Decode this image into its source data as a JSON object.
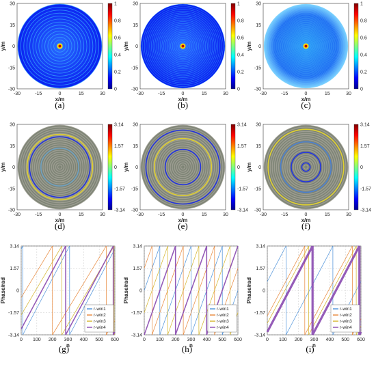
{
  "panels": [
    {
      "id": "a",
      "caption": "(a)",
      "kind": "amp",
      "density": 14,
      "cb": [
        "1",
        "0.8",
        "0.6",
        "0.4",
        "0.2",
        "0"
      ]
    },
    {
      "id": "b",
      "caption": "(b)",
      "kind": "amp",
      "density": 24,
      "cb": [
        "1",
        "0.8",
        "0.6",
        "0.4",
        "0.2",
        "0"
      ]
    },
    {
      "id": "c",
      "caption": "(c)",
      "kind": "amp",
      "density": 40,
      "cb": [
        "1",
        "0.8",
        "0.6",
        "0.4",
        "0.2",
        "0"
      ]
    },
    {
      "id": "d",
      "caption": "(d)",
      "kind": "phase",
      "cb": [
        "3.14",
        "1.57",
        "0",
        "-1.57",
        "-3.14"
      ]
    },
    {
      "id": "e",
      "caption": "(e)",
      "kind": "phase",
      "cb": [
        "3.14",
        "1.57",
        "0",
        "-1.57",
        "-3.14"
      ]
    },
    {
      "id": "f",
      "caption": "(f)",
      "kind": "phase",
      "cb": [
        "3.14",
        "1.57",
        "0",
        "-1.57",
        "-3.14"
      ]
    },
    {
      "id": "g",
      "caption": "(g)",
      "kind": "line"
    },
    {
      "id": "h",
      "caption": "(h)",
      "kind": "line"
    },
    {
      "id": "i",
      "caption": "(i)",
      "kind": "line"
    }
  ],
  "map_axes": {
    "xlabel": "x/m",
    "ylabel": "y/m",
    "xticks": [
      "-30",
      "-15",
      "0",
      "15",
      "30"
    ],
    "yticks": [
      "30",
      "15",
      "0",
      "-15",
      "-30"
    ]
  },
  "line_axes": {
    "xlabel": "n",
    "ylabel": "Phase/rad",
    "xticks": [
      "0",
      "100",
      "200",
      "300",
      "400",
      "500",
      "600"
    ],
    "yticks": [
      "3.14",
      "1.57",
      "0",
      "-1.57",
      "-3.14"
    ],
    "legend": [
      "r-win1",
      "r-win2",
      "r-win3",
      "r-win4"
    ],
    "colors": [
      "#4a90d9",
      "#e8873a",
      "#d4b42a",
      "#8a4ab0"
    ]
  },
  "chart_data": [
    {
      "type": "line",
      "panel": "g",
      "xlabel": "n",
      "ylabel": "Phase/rad",
      "xlim": [
        0,
        600
      ],
      "ylim": [
        -3.14,
        3.14
      ],
      "series": [
        {
          "name": "r-win1",
          "wraps": [
            10,
            310
          ]
        },
        {
          "name": "r-win2",
          "wraps": [
            200,
            545
          ]
        },
        {
          "name": "r-win3",
          "wraps": [
            260,
            595
          ]
        },
        {
          "name": "r-win4",
          "wraps": [
            285,
            590
          ]
        }
      ]
    },
    {
      "type": "line",
      "panel": "h",
      "xlabel": "n",
      "ylabel": "Phase/rad",
      "xlim": [
        0,
        600
      ],
      "ylim": [
        -3.14,
        3.14
      ],
      "series": [
        {
          "name": "r-win1",
          "wraps": [
            100,
            300,
            500
          ]
        },
        {
          "name": "r-win2",
          "wraps": [
            50,
            250,
            450
          ]
        },
        {
          "name": "r-win3",
          "wraps": [
            150,
            350,
            550
          ]
        },
        {
          "name": "r-win4",
          "wraps": [
            0,
            200,
            400,
            600
          ]
        }
      ]
    },
    {
      "type": "line",
      "panel": "i",
      "xlabel": "n",
      "ylabel": "Phase/rad",
      "xlim": [
        0,
        600
      ],
      "ylim": [
        -3.14,
        3.14
      ],
      "series": [
        {
          "name": "r-win1",
          "wraps": [
            120,
            420
          ]
        },
        {
          "name": "r-win2",
          "wraps": [
            240,
            545
          ]
        },
        {
          "name": "r-win3",
          "wraps": [
            265,
            570
          ]
        },
        {
          "name": "r-win4",
          "wraps": [
            290,
            590
          ]
        }
      ]
    }
  ]
}
